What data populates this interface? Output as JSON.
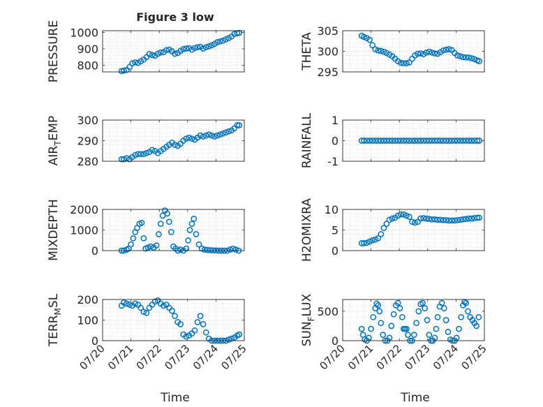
{
  "figure": {
    "title": "Figure 3 low",
    "marker_color": "#0072BD",
    "xlabel_left": "Time",
    "xlabel_right": "Time"
  },
  "chart_data": [
    {
      "type": "scatter",
      "title": "Figure 3 low",
      "ylabel": "PRESSURE",
      "ylim": [
        760,
        1010
      ],
      "yticks": [
        800,
        900,
        1000
      ],
      "xlim": [
        0,
        5
      ],
      "xticks": [
        "07/20",
        "07/21",
        "07/22",
        "07/23",
        "07/24",
        "07/25"
      ],
      "show_xticklabels": false,
      "grid": "on",
      "x": [
        0.67,
        0.75,
        0.85,
        0.95,
        1.05,
        1.15,
        1.25,
        1.35,
        1.45,
        1.55,
        1.65,
        1.75,
        1.85,
        1.95,
        2.05,
        2.15,
        2.25,
        2.35,
        2.45,
        2.55,
        2.65,
        2.75,
        2.85,
        2.95,
        3.05,
        3.15,
        3.25,
        3.35,
        3.45,
        3.55,
        3.65,
        3.75,
        3.85,
        3.95,
        4.05,
        4.15,
        4.25,
        4.35,
        4.45,
        4.55,
        4.65,
        4.75,
        4.82
      ],
      "y": [
        765,
        768,
        772,
        790,
        812,
        818,
        815,
        825,
        835,
        850,
        868,
        862,
        858,
        870,
        878,
        880,
        892,
        895,
        885,
        870,
        875,
        888,
        898,
        902,
        904,
        895,
        905,
        910,
        912,
        902,
        910,
        915,
        922,
        930,
        940,
        945,
        950,
        958,
        965,
        975,
        990,
        995,
        997
      ]
    },
    {
      "type": "scatter",
      "title": "",
      "ylabel": "THETA",
      "ylim": [
        295,
        305
      ],
      "yticks": [
        295,
        300,
        305
      ],
      "xlim": [
        0,
        5
      ],
      "xticks": [
        "07/20",
        "07/21",
        "07/22",
        "07/23",
        "07/24",
        "07/25"
      ],
      "show_xticklabels": false,
      "grid": "on",
      "x": [
        0.67,
        0.75,
        0.85,
        0.95,
        1.05,
        1.15,
        1.25,
        1.35,
        1.45,
        1.55,
        1.65,
        1.75,
        1.85,
        1.95,
        2.05,
        2.15,
        2.25,
        2.35,
        2.45,
        2.55,
        2.65,
        2.75,
        2.85,
        2.95,
        3.05,
        3.15,
        3.25,
        3.35,
        3.45,
        3.55,
        3.65,
        3.75,
        3.85,
        3.95,
        4.05,
        4.15,
        4.25,
        4.35,
        4.45,
        4.55,
        4.65,
        4.75,
        4.82
      ],
      "y": [
        303.8,
        303.5,
        303.2,
        302.8,
        301.5,
        300.5,
        300.2,
        300.1,
        299.9,
        299.6,
        299.2,
        298.8,
        298.2,
        297.6,
        297.2,
        297.1,
        297.1,
        297.3,
        298.2,
        299.0,
        299.4,
        299.5,
        299.3,
        299.7,
        299.9,
        299.7,
        299.5,
        299.4,
        299.8,
        300.2,
        300.4,
        300.5,
        300.3,
        299.6,
        299.0,
        298.8,
        298.6,
        298.5,
        298.5,
        298.3,
        298.1,
        297.8,
        297.6
      ]
    },
    {
      "type": "scatter",
      "title": "",
      "ylabel": "AIR_TEMP",
      "ylim": [
        280,
        300
      ],
      "yticks": [
        280,
        290,
        300
      ],
      "xlim": [
        0,
        5
      ],
      "xticks": [
        "07/20",
        "07/21",
        "07/22",
        "07/23",
        "07/24",
        "07/25"
      ],
      "show_xticklabels": false,
      "grid": "on",
      "x": [
        0.67,
        0.75,
        0.85,
        0.95,
        1.05,
        1.15,
        1.25,
        1.35,
        1.45,
        1.55,
        1.65,
        1.75,
        1.85,
        1.95,
        2.05,
        2.15,
        2.25,
        2.35,
        2.45,
        2.55,
        2.65,
        2.75,
        2.85,
        2.95,
        3.05,
        3.15,
        3.25,
        3.35,
        3.45,
        3.55,
        3.65,
        3.75,
        3.85,
        3.95,
        4.05,
        4.15,
        4.25,
        4.35,
        4.45,
        4.55,
        4.65,
        4.75,
        4.82
      ],
      "y": [
        281,
        281,
        281.5,
        281,
        282,
        283,
        283.5,
        283.5,
        283.5,
        284,
        284.5,
        285.5,
        285,
        284,
        285,
        286,
        287,
        288,
        289,
        288,
        287.5,
        288.5,
        290,
        291,
        291.5,
        291,
        290.5,
        291.5,
        292.5,
        292,
        292.5,
        293,
        292.5,
        292,
        292.5,
        293,
        293.5,
        294,
        294.5,
        295,
        296,
        297.5,
        297.5
      ]
    },
    {
      "type": "scatter",
      "title": "",
      "ylabel": "RAINFALL",
      "ylim": [
        -1,
        1
      ],
      "yticks": [
        -1,
        0,
        1
      ],
      "xlim": [
        0,
        5
      ],
      "xticks": [
        "07/20",
        "07/21",
        "07/22",
        "07/23",
        "07/24",
        "07/25"
      ],
      "show_xticklabels": false,
      "grid": "on",
      "x": [
        0.67,
        0.75,
        0.85,
        0.95,
        1.05,
        1.15,
        1.25,
        1.35,
        1.45,
        1.55,
        1.65,
        1.75,
        1.85,
        1.95,
        2.05,
        2.15,
        2.25,
        2.35,
        2.45,
        2.55,
        2.65,
        2.75,
        2.85,
        2.95,
        3.05,
        3.15,
        3.25,
        3.35,
        3.45,
        3.55,
        3.65,
        3.75,
        3.85,
        3.95,
        4.05,
        4.15,
        4.25,
        4.35,
        4.45,
        4.55,
        4.65,
        4.75,
        4.82
      ],
      "y": [
        0,
        0,
        0,
        0,
        0,
        0,
        0,
        0,
        0,
        0,
        0,
        0,
        0,
        0,
        0,
        0,
        0,
        0,
        0,
        0,
        0,
        0,
        0,
        0,
        0,
        0,
        0,
        0,
        0,
        0,
        0,
        0,
        0,
        0,
        0,
        0,
        0,
        0,
        0,
        0,
        0,
        0,
        0
      ]
    },
    {
      "type": "scatter",
      "title": "",
      "ylabel": "MIXDEPTH",
      "ylim": [
        0,
        2000
      ],
      "yticks": [
        0,
        1000,
        2000
      ],
      "xlim": [
        0,
        5
      ],
      "xticks": [
        "07/20",
        "07/21",
        "07/22",
        "07/23",
        "07/24",
        "07/25"
      ],
      "show_xticklabels": false,
      "grid": "on",
      "x": [
        0.67,
        0.75,
        0.85,
        0.92,
        1.0,
        1.08,
        1.15,
        1.22,
        1.3,
        1.38,
        1.45,
        1.52,
        1.6,
        1.7,
        1.8,
        1.9,
        1.98,
        2.05,
        2.12,
        2.2,
        2.28,
        2.35,
        2.42,
        2.5,
        2.58,
        2.66,
        2.75,
        2.85,
        2.95,
        3.02,
        3.08,
        3.15,
        3.22,
        3.3,
        3.4,
        3.5,
        3.6,
        3.7,
        3.8,
        3.9,
        4.0,
        4.1,
        4.2,
        4.3,
        4.4,
        4.5,
        4.6,
        4.7,
        4.8
      ],
      "y": [
        0,
        0,
        50,
        100,
        300,
        600,
        900,
        1100,
        1300,
        1350,
        600,
        100,
        150,
        200,
        150,
        250,
        800,
        1300,
        1700,
        1950,
        1800,
        1400,
        900,
        200,
        100,
        0,
        50,
        0,
        100,
        500,
        1000,
        1300,
        1550,
        800,
        300,
        100,
        50,
        30,
        20,
        10,
        10,
        0,
        0,
        0,
        0,
        50,
        100,
        50,
        0
      ]
    },
    {
      "type": "scatter",
      "title": "",
      "ylabel": "H2OMIXRA",
      "ylim": [
        0,
        10
      ],
      "yticks": [
        0,
        5,
        10
      ],
      "xlim": [
        0,
        5
      ],
      "xticks": [
        "07/20",
        "07/21",
        "07/22",
        "07/23",
        "07/24",
        "07/25"
      ],
      "show_xticklabels": false,
      "grid": "on",
      "x": [
        0.67,
        0.75,
        0.85,
        0.95,
        1.05,
        1.15,
        1.25,
        1.35,
        1.45,
        1.55,
        1.65,
        1.75,
        1.85,
        1.95,
        2.05,
        2.15,
        2.25,
        2.35,
        2.45,
        2.55,
        2.65,
        2.75,
        2.85,
        2.95,
        3.05,
        3.15,
        3.25,
        3.35,
        3.45,
        3.55,
        3.65,
        3.75,
        3.85,
        3.95,
        4.05,
        4.15,
        4.25,
        4.35,
        4.45,
        4.55,
        4.65,
        4.75,
        4.82
      ],
      "y": [
        1.8,
        1.8,
        1.9,
        2.2,
        2.5,
        2.7,
        3.0,
        4.0,
        5.5,
        6.5,
        7.5,
        7.8,
        8.0,
        8.5,
        8.8,
        8.8,
        8.5,
        8.2,
        7.0,
        6.8,
        7.0,
        7.8,
        7.9,
        7.8,
        7.7,
        7.6,
        7.6,
        7.5,
        7.5,
        7.4,
        7.4,
        7.3,
        7.3,
        7.3,
        7.4,
        7.5,
        7.6,
        7.7,
        7.8,
        7.8,
        7.9,
        8.0,
        8.0
      ]
    },
    {
      "type": "scatter",
      "title": "",
      "ylabel": "TERR_MSL",
      "ylim": [
        0,
        200
      ],
      "yticks": [
        0,
        100,
        200
      ],
      "xlim": [
        0,
        5
      ],
      "xticks": [
        "07/20",
        "07/21",
        "07/22",
        "07/23",
        "07/24",
        "07/25"
      ],
      "show_xticklabels": true,
      "grid": "on",
      "x": [
        0.67,
        0.75,
        0.85,
        0.95,
        1.05,
        1.15,
        1.25,
        1.35,
        1.45,
        1.55,
        1.65,
        1.75,
        1.85,
        1.95,
        2.05,
        2.15,
        2.25,
        2.35,
        2.45,
        2.55,
        2.65,
        2.75,
        2.85,
        2.95,
        3.05,
        3.15,
        3.25,
        3.35,
        3.45,
        3.55,
        3.65,
        3.75,
        3.85,
        3.95,
        4.05,
        4.15,
        4.25,
        4.35,
        4.45,
        4.55,
        4.65,
        4.75,
        4.82
      ],
      "y": [
        170,
        185,
        180,
        175,
        170,
        180,
        175,
        160,
        140,
        135,
        160,
        175,
        190,
        195,
        180,
        170,
        175,
        160,
        145,
        120,
        90,
        80,
        30,
        20,
        25,
        35,
        50,
        90,
        120,
        80,
        40,
        10,
        0,
        0,
        0,
        0,
        0,
        0,
        5,
        10,
        15,
        25,
        30
      ]
    },
    {
      "type": "scatter",
      "title": "",
      "ylabel": "SUN_FLUX",
      "ylim": [
        0,
        700
      ],
      "yticks": [
        0,
        500
      ],
      "xlim": [
        0,
        5
      ],
      "xticks": [
        "07/20",
        "07/21",
        "07/22",
        "07/23",
        "07/24",
        "07/25"
      ],
      "show_xticklabels": true,
      "grid": "on",
      "x": [
        0.67,
        0.72,
        0.78,
        0.85,
        0.92,
        1.0,
        1.08,
        1.15,
        1.2,
        1.25,
        1.3,
        1.35,
        1.42,
        1.5,
        1.58,
        1.65,
        1.72,
        1.8,
        1.88,
        1.95,
        2.02,
        2.1,
        2.15,
        2.2,
        2.25,
        2.3,
        2.38,
        2.45,
        2.52,
        2.6,
        2.68,
        2.75,
        2.82,
        2.9,
        2.98,
        3.05,
        3.12,
        3.18,
        3.25,
        3.3,
        3.35,
        3.42,
        3.5,
        3.58,
        3.65,
        3.72,
        3.8,
        3.88,
        3.95,
        4.02,
        4.1,
        4.18,
        4.25,
        4.3,
        4.35,
        4.42,
        4.5,
        4.58,
        4.65,
        4.72,
        4.8
      ],
      "y": [
        200,
        100,
        20,
        0,
        50,
        200,
        400,
        550,
        630,
        600,
        500,
        300,
        100,
        0,
        0,
        50,
        250,
        450,
        600,
        640,
        550,
        400,
        200,
        200,
        200,
        100,
        0,
        0,
        100,
        300,
        500,
        620,
        640,
        550,
        350,
        100,
        0,
        0,
        50,
        200,
        400,
        580,
        640,
        550,
        350,
        150,
        20,
        0,
        0,
        50,
        200,
        400,
        600,
        660,
        640,
        500,
        400,
        350,
        300,
        250,
        400
      ]
    }
  ]
}
